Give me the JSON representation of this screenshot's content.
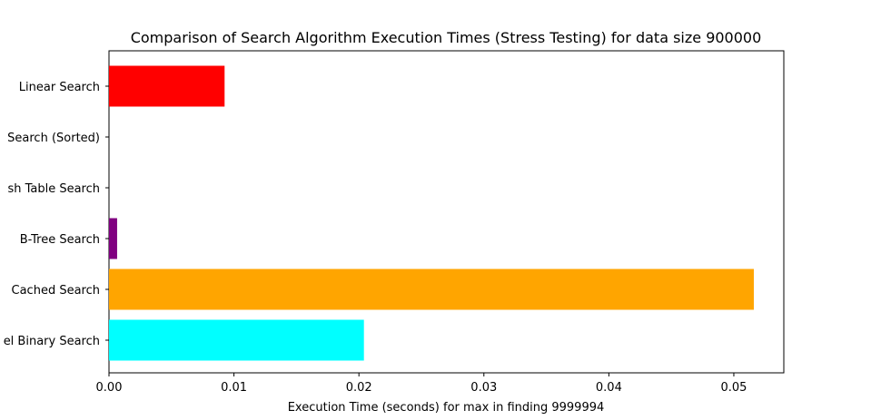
{
  "chart_data": {
    "type": "bar",
    "orientation": "horizontal",
    "title": "Comparison of Search Algorithm Execution Times (Stress Testing) for data size 900000",
    "xlabel": "Execution Time (seconds) for max in finding 9999994",
    "ylabel": "",
    "categories": [
      "Linear Search",
      "Search (Sorted)",
      "sh Table Search",
      "B-Tree Search",
      "Cached Search",
      "el Binary Search"
    ],
    "values": [
      0.00925,
      0.0,
      0.0,
      0.00065,
      0.0516,
      0.0204
    ],
    "colors": [
      "#ff0000",
      "#0000ff",
      "#008000",
      "#800080",
      "#ffa500",
      "#00ffff"
    ],
    "xlim": [
      0,
      0.054
    ],
    "xticks": [
      0.0,
      0.01,
      0.02,
      0.03,
      0.04,
      0.05
    ],
    "xtick_labels": [
      "0.00",
      "0.01",
      "0.02",
      "0.03",
      "0.04",
      "0.05"
    ],
    "grid": false,
    "legend": "none"
  }
}
